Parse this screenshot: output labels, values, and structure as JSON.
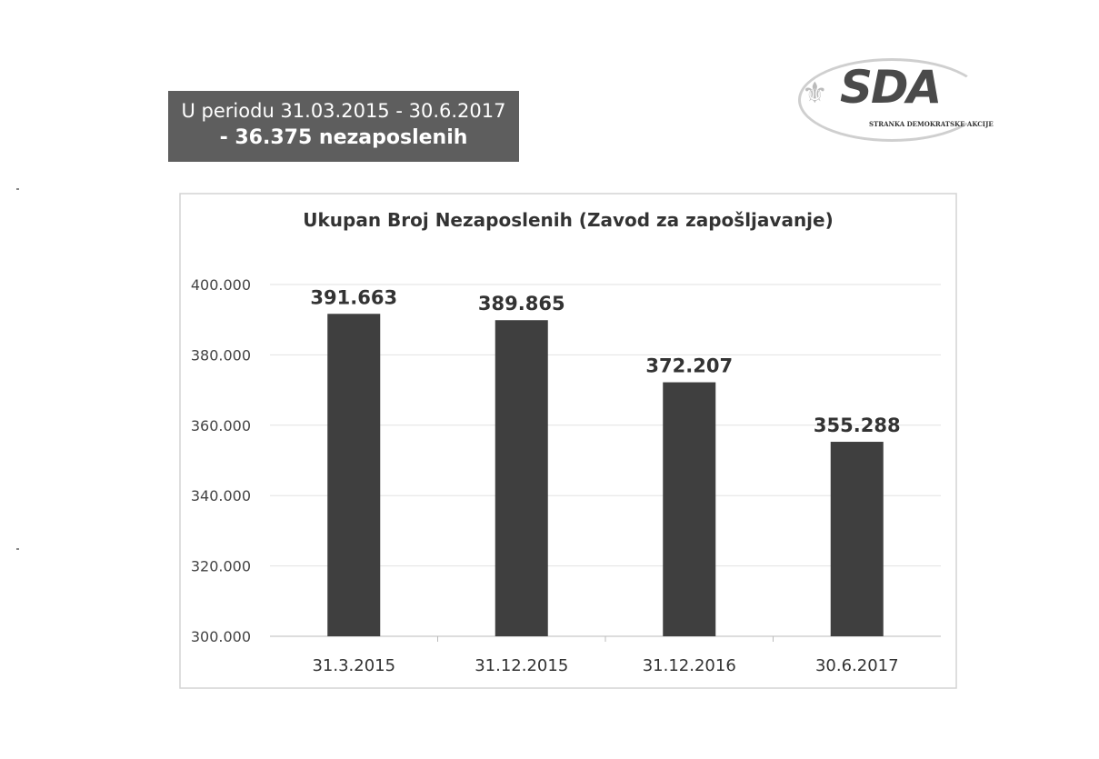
{
  "banner": {
    "line1": "U periodu 31.03.2015 - 30.6.2017",
    "line2": "- 36.375 nezaposlenih"
  },
  "logo": {
    "name": "SDA",
    "subtitle": "STRANKA DEMOKRATSKE AKCIJE"
  },
  "chart_data": {
    "type": "bar",
    "title": "Ukupan Broj Nezaposlenih (Zavod za zapošljavanje)",
    "categories": [
      "31.3.2015",
      "31.12.2015",
      "31.12.2016",
      "30.6.2017"
    ],
    "values": [
      391663,
      389865,
      372207,
      355288
    ],
    "value_labels": [
      "391.663",
      "389.865",
      "372.207",
      "355.288"
    ],
    "yticks": [
      300000,
      320000,
      340000,
      360000,
      380000,
      400000
    ],
    "ytick_labels": [
      "300.000",
      "320.000",
      "340.000",
      "360.000",
      "380.000",
      "400.000"
    ],
    "ylim": [
      300000,
      400000
    ],
    "xlabel": "",
    "ylabel": "",
    "grid": true,
    "bar_color": "#3f3f3f"
  }
}
